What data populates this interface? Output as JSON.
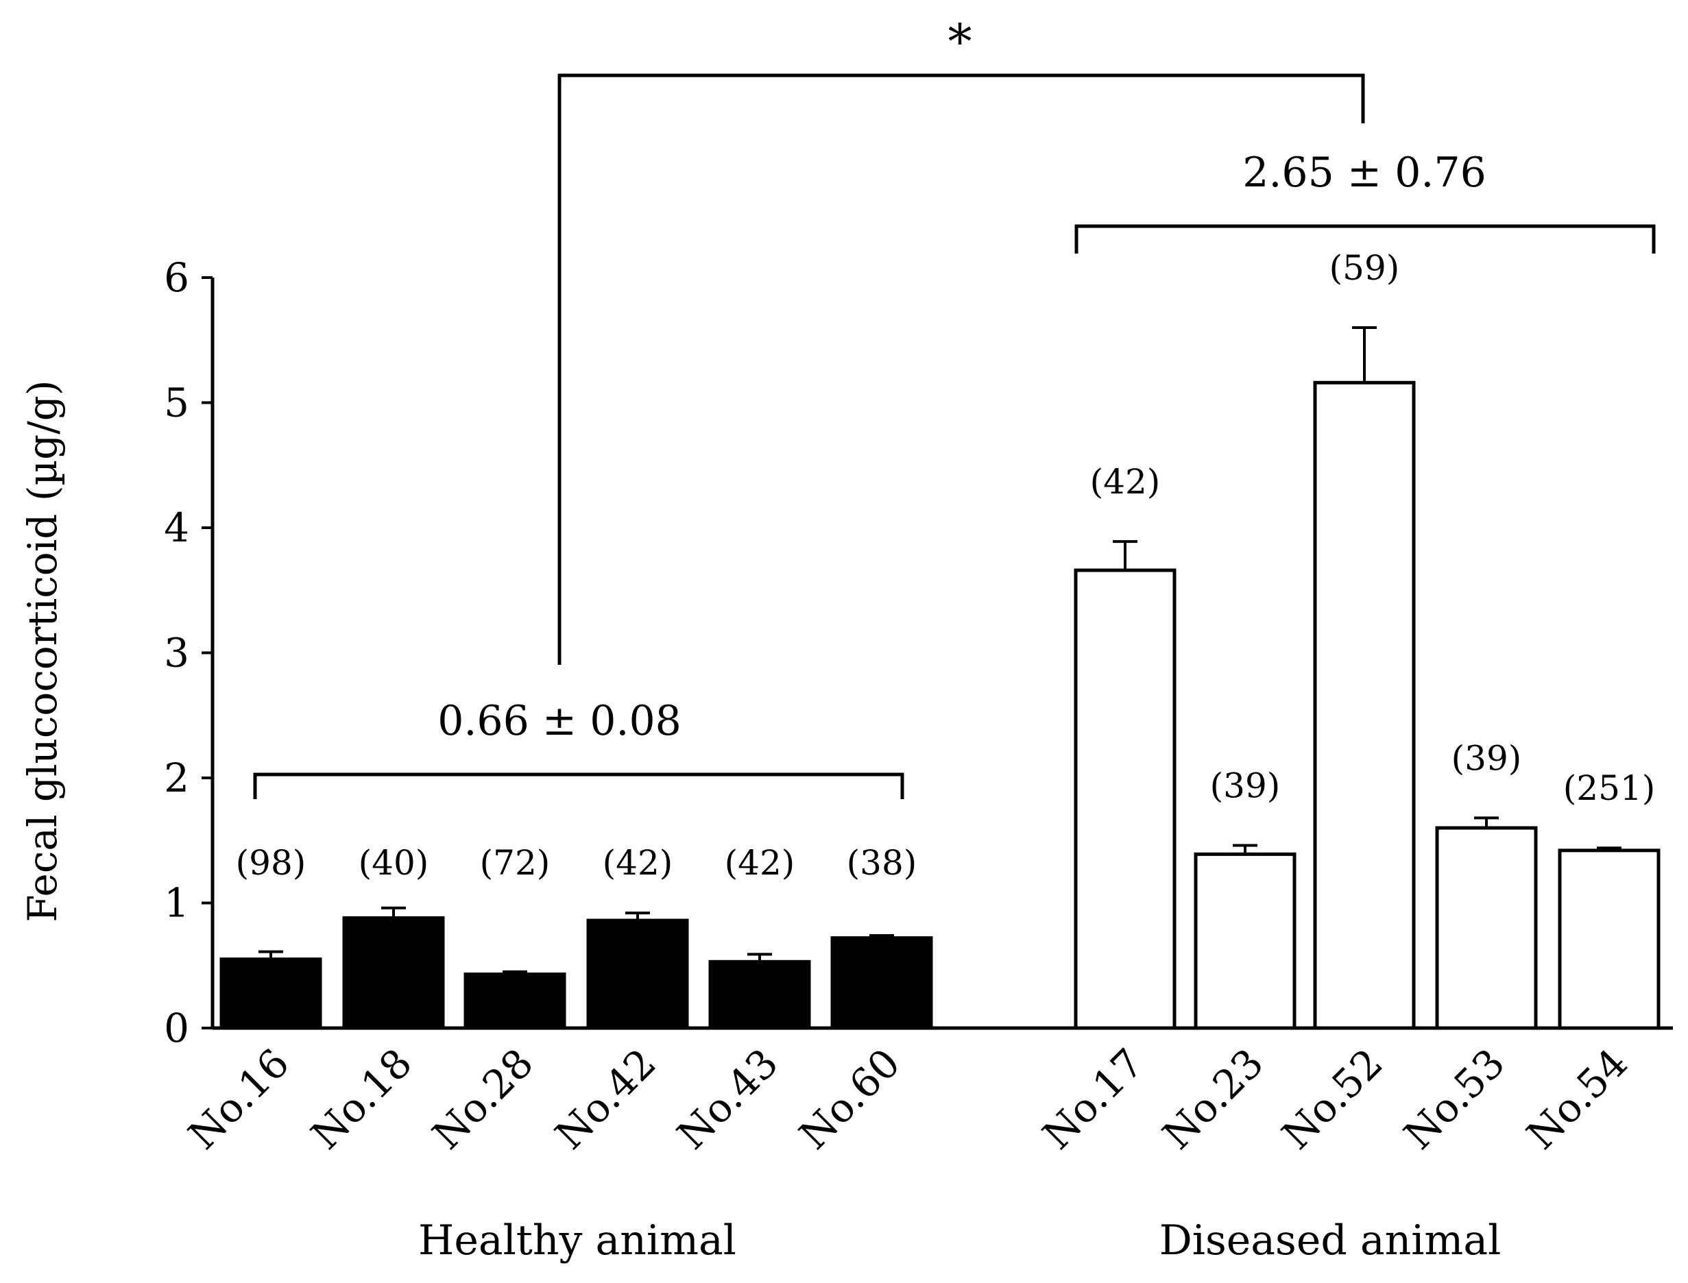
{
  "chart_data": {
    "type": "bar",
    "ylabel": "Fecal glucocorticoid (µg/g)",
    "ylim": [
      0,
      6
    ],
    "yticks": [
      0,
      1,
      2,
      3,
      4,
      5,
      6
    ],
    "grid": false,
    "groups": [
      {
        "label": "Healthy animal",
        "fill": "#000000",
        "categories": [
          "No.16",
          "No.18",
          "No.28",
          "No.42",
          "No.43",
          "No.60"
        ],
        "values": [
          0.55,
          0.88,
          0.43,
          0.86,
          0.53,
          0.72
        ],
        "errors": [
          0.06,
          0.08,
          0.02,
          0.06,
          0.06,
          0.02
        ],
        "n_labels": [
          "(98)",
          "(40)",
          "(72)",
          "(42)",
          "(42)",
          "(38)"
        ],
        "summary": "0.66 ± 0.08"
      },
      {
        "label": "Diseased animal",
        "fill": "#ffffff",
        "categories": [
          "No.17",
          "No.23",
          "No.52",
          "No.53",
          "No.54"
        ],
        "values": [
          3.66,
          1.39,
          5.16,
          1.6,
          1.42
        ],
        "errors": [
          0.23,
          0.07,
          0.44,
          0.08,
          0.02
        ],
        "n_labels": [
          "(42)",
          "(39)",
          "(59)",
          "(39)",
          "(251)"
        ],
        "summary": "2.65 ± 0.76"
      }
    ],
    "significance": "*"
  }
}
